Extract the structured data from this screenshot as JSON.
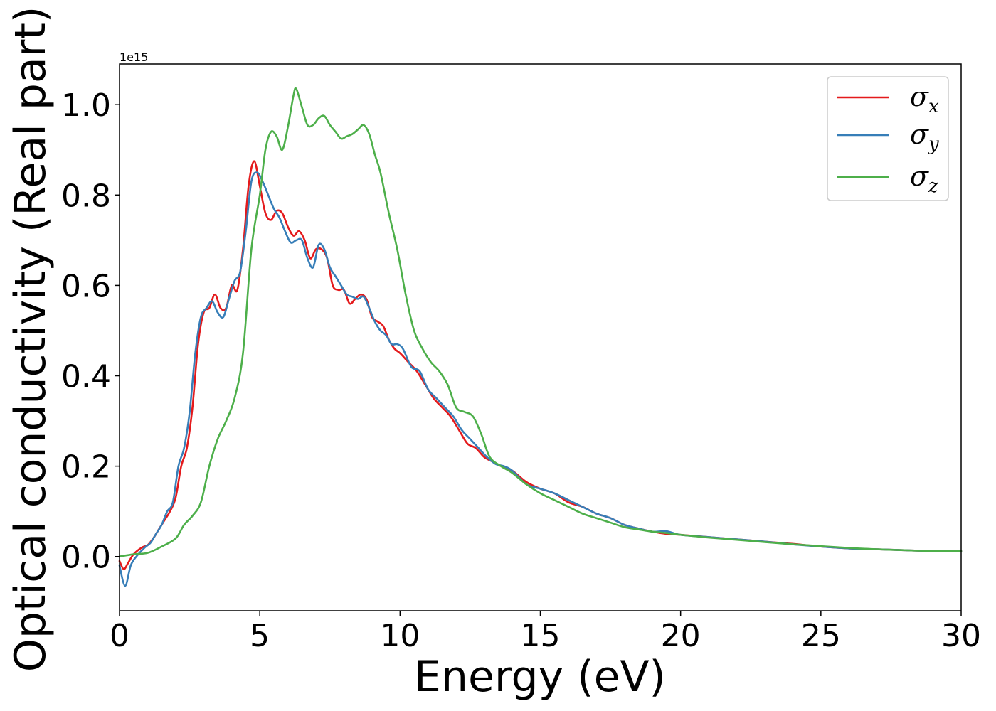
{
  "chart_data": {
    "type": "line",
    "title": "",
    "xlabel": "Energy (eV)",
    "ylabel": "Optical conductivity (Real part)",
    "xlim": [
      0,
      30
    ],
    "ylim": [
      -0.12,
      1.09
    ],
    "y_scale_label": "1e15",
    "y_multiplier": 1000000000000000.0,
    "x_ticks": [
      "0",
      "5",
      "10",
      "15",
      "20",
      "25",
      "30"
    ],
    "y_ticks": [
      "0.0",
      "0.2",
      "0.4",
      "0.6",
      "0.8",
      "1.0"
    ],
    "grid": false,
    "legend_position": "top-right",
    "series": [
      {
        "name": "σx",
        "symbol": "σ",
        "subscript": "x",
        "color": "#e41a1c",
        "x": [
          0,
          0.15,
          0.3,
          0.5,
          0.8,
          1.0,
          1.2,
          1.4,
          1.6,
          1.8,
          2.0,
          2.2,
          2.4,
          2.6,
          2.8,
          3.0,
          3.2,
          3.4,
          3.6,
          3.8,
          4.0,
          4.2,
          4.4,
          4.6,
          4.8,
          5.0,
          5.2,
          5.4,
          5.6,
          5.8,
          6.0,
          6.2,
          6.4,
          6.6,
          6.8,
          7.0,
          7.2,
          7.4,
          7.6,
          7.8,
          8.0,
          8.2,
          8.4,
          8.6,
          8.8,
          9.0,
          9.2,
          9.4,
          9.6,
          9.8,
          10.0,
          10.3,
          10.6,
          10.9,
          11.2,
          11.5,
          11.8,
          12.1,
          12.4,
          12.7,
          13.0,
          13.3,
          13.6,
          14.0,
          14.5,
          15.0,
          15.5,
          16.0,
          16.5,
          17.0,
          17.5,
          18.0,
          18.5,
          19.0,
          19.5,
          20.0,
          21.0,
          22.0,
          23.0,
          24.0,
          25.0,
          26.0,
          27.0,
          28.0,
          29.0,
          30.0
        ],
        "y": [
          -0.01,
          -0.028,
          -0.015,
          0.005,
          0.02,
          0.025,
          0.04,
          0.06,
          0.08,
          0.1,
          0.13,
          0.2,
          0.24,
          0.33,
          0.47,
          0.54,
          0.55,
          0.58,
          0.55,
          0.55,
          0.6,
          0.59,
          0.68,
          0.82,
          0.875,
          0.82,
          0.76,
          0.745,
          0.765,
          0.76,
          0.73,
          0.71,
          0.72,
          0.7,
          0.66,
          0.68,
          0.68,
          0.66,
          0.6,
          0.59,
          0.59,
          0.56,
          0.57,
          0.58,
          0.57,
          0.53,
          0.52,
          0.51,
          0.48,
          0.46,
          0.45,
          0.43,
          0.41,
          0.38,
          0.35,
          0.33,
          0.31,
          0.28,
          0.25,
          0.24,
          0.22,
          0.21,
          0.2,
          0.19,
          0.165,
          0.15,
          0.14,
          0.12,
          0.11,
          0.095,
          0.085,
          0.07,
          0.062,
          0.055,
          0.05,
          0.048,
          0.043,
          0.038,
          0.033,
          0.028,
          0.022,
          0.018,
          0.016,
          0.014,
          0.012,
          0.012
        ]
      },
      {
        "name": "σy",
        "symbol": "σ",
        "subscript": "y",
        "color": "#377eb8",
        "x": [
          0,
          0.2,
          0.4,
          0.6,
          0.9,
          1.1,
          1.3,
          1.5,
          1.7,
          1.9,
          2.1,
          2.3,
          2.5,
          2.7,
          2.9,
          3.1,
          3.3,
          3.5,
          3.7,
          3.9,
          4.1,
          4.3,
          4.5,
          4.7,
          4.9,
          5.1,
          5.3,
          5.5,
          5.7,
          5.9,
          6.1,
          6.3,
          6.5,
          6.7,
          6.9,
          7.1,
          7.3,
          7.5,
          7.7,
          7.9,
          8.1,
          8.3,
          8.5,
          8.7,
          8.9,
          9.1,
          9.3,
          9.5,
          9.7,
          9.9,
          10.1,
          10.4,
          10.7,
          11.0,
          11.3,
          11.6,
          11.9,
          12.2,
          12.5,
          12.8,
          13.1,
          13.4,
          13.7,
          14.0,
          14.5,
          15.0,
          15.5,
          16.0,
          16.5,
          17.0,
          17.5,
          18.0,
          18.5,
          19.0,
          19.5,
          20.0,
          21.0,
          22.0,
          23.0,
          24.0,
          25.0,
          26.0,
          27.0,
          28.0,
          29.0,
          30.0
        ],
        "y": [
          -0.02,
          -0.065,
          -0.02,
          0.0,
          0.02,
          0.03,
          0.05,
          0.07,
          0.1,
          0.12,
          0.2,
          0.24,
          0.32,
          0.45,
          0.53,
          0.55,
          0.565,
          0.54,
          0.53,
          0.57,
          0.61,
          0.63,
          0.72,
          0.83,
          0.85,
          0.83,
          0.8,
          0.77,
          0.75,
          0.72,
          0.695,
          0.7,
          0.7,
          0.66,
          0.64,
          0.69,
          0.68,
          0.64,
          0.62,
          0.6,
          0.58,
          0.575,
          0.57,
          0.575,
          0.55,
          0.52,
          0.5,
          0.49,
          0.47,
          0.47,
          0.46,
          0.42,
          0.41,
          0.37,
          0.35,
          0.33,
          0.31,
          0.28,
          0.26,
          0.24,
          0.22,
          0.205,
          0.2,
          0.19,
          0.16,
          0.15,
          0.14,
          0.125,
          0.11,
          0.095,
          0.085,
          0.07,
          0.062,
          0.055,
          0.056,
          0.048,
          0.043,
          0.038,
          0.033,
          0.027,
          0.022,
          0.018,
          0.016,
          0.014,
          0.012,
          0.012
        ]
      },
      {
        "name": "σz",
        "symbol": "σ",
        "subscript": "z",
        "color": "#4daf4a",
        "x": [
          0,
          0.5,
          1.0,
          1.5,
          2.0,
          2.3,
          2.6,
          2.9,
          3.2,
          3.5,
          3.8,
          4.1,
          4.4,
          4.7,
          5.0,
          5.2,
          5.4,
          5.6,
          5.8,
          6.0,
          6.2,
          6.3,
          6.5,
          6.7,
          6.9,
          7.1,
          7.3,
          7.5,
          7.7,
          7.9,
          8.1,
          8.3,
          8.5,
          8.7,
          8.9,
          9.1,
          9.3,
          9.6,
          9.9,
          10.2,
          10.5,
          10.8,
          11.1,
          11.4,
          11.7,
          12.0,
          12.3,
          12.6,
          12.9,
          13.2,
          13.6,
          14.0,
          14.5,
          15.0,
          15.5,
          16.0,
          16.5,
          17.0,
          17.5,
          18.0,
          18.5,
          19.0,
          19.5,
          20.0,
          21.0,
          22.0,
          23.0,
          24.0,
          25.0,
          26.0,
          27.0,
          28.0,
          29.0,
          30.0
        ],
        "y": [
          0.0,
          0.005,
          0.008,
          0.022,
          0.04,
          0.07,
          0.09,
          0.12,
          0.2,
          0.26,
          0.3,
          0.35,
          0.45,
          0.68,
          0.8,
          0.9,
          0.94,
          0.93,
          0.9,
          0.95,
          1.02,
          1.035,
          0.995,
          0.955,
          0.955,
          0.97,
          0.975,
          0.955,
          0.94,
          0.925,
          0.93,
          0.935,
          0.945,
          0.955,
          0.935,
          0.89,
          0.85,
          0.76,
          0.68,
          0.58,
          0.5,
          0.46,
          0.43,
          0.41,
          0.38,
          0.33,
          0.32,
          0.31,
          0.27,
          0.22,
          0.2,
          0.185,
          0.16,
          0.14,
          0.125,
          0.11,
          0.095,
          0.085,
          0.075,
          0.065,
          0.06,
          0.055,
          0.052,
          0.048,
          0.042,
          0.037,
          0.032,
          0.027,
          0.023,
          0.019,
          0.016,
          0.014,
          0.012,
          0.012
        ]
      }
    ]
  }
}
